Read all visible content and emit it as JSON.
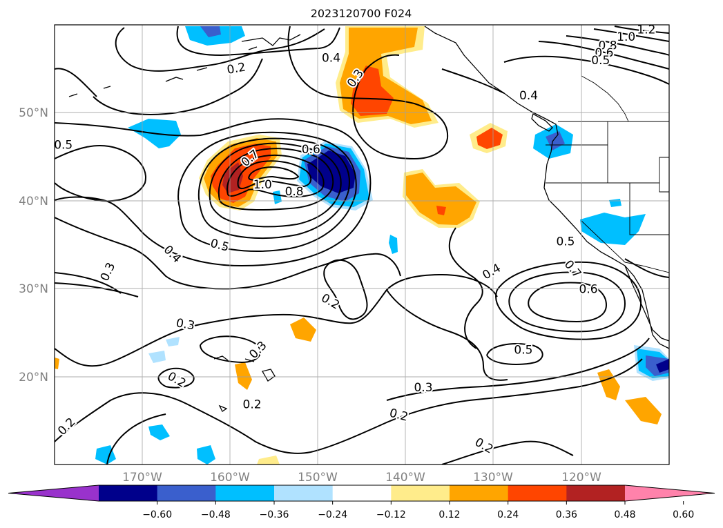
{
  "title": "2023120700 F024",
  "map": {
    "lon_range": [
      -180,
      -110
    ],
    "lat_range": [
      10,
      60
    ],
    "grid_lons": [
      -170,
      -160,
      -150,
      -140,
      -130,
      -120
    ],
    "grid_lats": [
      20,
      30,
      40,
      50
    ],
    "lon_labels": [
      "170°W",
      "160°W",
      "150°W",
      "140°W",
      "130°W",
      "120°W"
    ],
    "lat_labels": [
      "20°N",
      "30°N",
      "40°N",
      "50°N"
    ],
    "grid": true,
    "tick_label_color": "#808080"
  },
  "contour_labels": [
    {
      "text": "0.4",
      "lon": -148.5,
      "lat": 56.2,
      "rot": 0
    },
    {
      "text": "0.3",
      "lon": -145.7,
      "lat": 53.9,
      "rot": -55
    },
    {
      "text": "0.2",
      "lon": -159.3,
      "lat": 55.0,
      "rot": -10
    },
    {
      "text": "1.0",
      "lon": -114.9,
      "lat": 58.6,
      "rot": 0
    },
    {
      "text": "1.2",
      "lon": -112.6,
      "lat": 59.4,
      "rot": 0
    },
    {
      "text": "0.8",
      "lon": -117.0,
      "lat": 57.6,
      "rot": 0
    },
    {
      "text": "0.6",
      "lon": -117.4,
      "lat": 56.8,
      "rot": 0
    },
    {
      "text": "0.5",
      "lon": -117.8,
      "lat": 55.9,
      "rot": 0
    },
    {
      "text": "0.4",
      "lon": -126.0,
      "lat": 51.9,
      "rot": 0
    },
    {
      "text": "0.5",
      "lon": -179.0,
      "lat": 46.3,
      "rot": 0
    },
    {
      "text": "0.6",
      "lon": -150.8,
      "lat": 45.8,
      "rot": 0
    },
    {
      "text": "0.7",
      "lon": -157.7,
      "lat": 44.8,
      "rot": -40
    },
    {
      "text": "1.0",
      "lon": -156.3,
      "lat": 41.8,
      "rot": 0
    },
    {
      "text": "0.8",
      "lon": -152.7,
      "lat": 41.0,
      "rot": 0
    },
    {
      "text": "0.5",
      "lon": -161.2,
      "lat": 34.9,
      "rot": 15
    },
    {
      "text": "0.4",
      "lon": -166.6,
      "lat": 33.9,
      "rot": 45
    },
    {
      "text": "0.3",
      "lon": -173.9,
      "lat": 31.9,
      "rot": -65
    },
    {
      "text": "0.2",
      "lon": -148.6,
      "lat": 28.5,
      "rot": 30
    },
    {
      "text": "0.3",
      "lon": -165.1,
      "lat": 25.9,
      "rot": 10
    },
    {
      "text": "0.4",
      "lon": -130.2,
      "lat": 31.9,
      "rot": -30
    },
    {
      "text": "0.5",
      "lon": -121.8,
      "lat": 35.3,
      "rot": 0
    },
    {
      "text": "0.7",
      "lon": -121.0,
      "lat": 32.2,
      "rot": 50
    },
    {
      "text": "0.6",
      "lon": -119.2,
      "lat": 29.9,
      "rot": 0
    },
    {
      "text": "0.5",
      "lon": -126.6,
      "lat": 23.0,
      "rot": 0
    },
    {
      "text": "0.3",
      "lon": -156.8,
      "lat": 23.0,
      "rot": -45
    },
    {
      "text": "0.2",
      "lon": -166.1,
      "lat": 19.6,
      "rot": 30
    },
    {
      "text": "0.2",
      "lon": -157.5,
      "lat": 16.8,
      "rot": 0
    },
    {
      "text": "0.3",
      "lon": -138.0,
      "lat": 18.7,
      "rot": 0
    },
    {
      "text": "0.2",
      "lon": -140.8,
      "lat": 15.6,
      "rot": 15
    },
    {
      "text": "0.2",
      "lon": -178.6,
      "lat": 14.3,
      "rot": -45
    },
    {
      "text": "0.2",
      "lon": -131.1,
      "lat": 12.1,
      "rot": 30
    }
  ],
  "colorbar": {
    "ticks": [
      "−0.60",
      "−0.48",
      "−0.36",
      "−0.24",
      "−0.12",
      "0.12",
      "0.24",
      "0.36",
      "0.48",
      "0.60"
    ],
    "colors": [
      "#9932cc",
      "#00008b",
      "#3a5fcd",
      "#00bfff",
      "#b0e2ff",
      "#ffffff",
      "#ffec8b",
      "#ffa500",
      "#ff4500",
      "#b22222",
      "#ff82ab"
    ]
  }
}
